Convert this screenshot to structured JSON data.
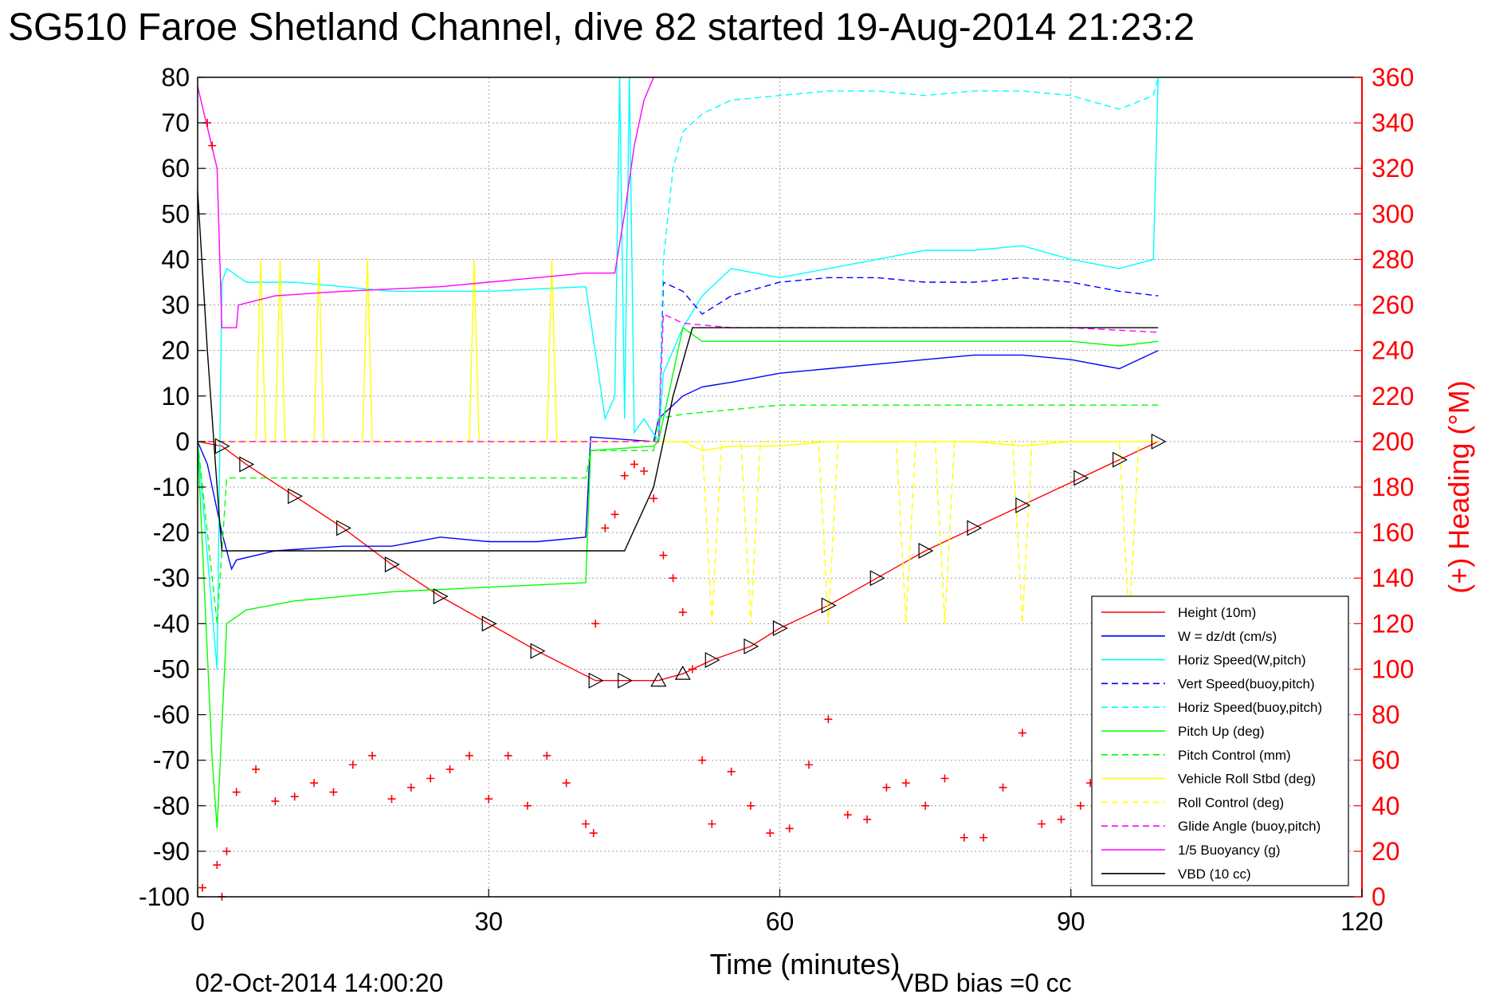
{
  "chart_data": {
    "type": "line",
    "title": "SG510 Faroe Shetland Channel, dive 82 started 19-Aug-2014 21:23:2",
    "xlabel": "Time (minutes)",
    "ylabel_right": "(+) Heading (°M)",
    "footer_date": "02-Oct-2014 14:00:20",
    "footer_bias": "VBD bias =0 cc",
    "xlim": [
      0,
      120
    ],
    "ylim": [
      -100,
      80
    ],
    "ylim_right": [
      0,
      360
    ],
    "xticks": [
      0,
      30,
      60,
      90,
      120
    ],
    "yticks": [
      80,
      70,
      60,
      50,
      40,
      30,
      20,
      10,
      0,
      -10,
      -20,
      -30,
      -40,
      -50,
      -60,
      -70,
      -80,
      -90,
      -100
    ],
    "yticks_right": [
      360,
      340,
      320,
      300,
      280,
      260,
      240,
      220,
      200,
      180,
      160,
      140,
      120,
      100,
      80,
      60,
      40,
      20,
      0
    ],
    "grid": true,
    "legend_position": "bottom-right",
    "series": [
      {
        "name": "Height (10m)",
        "color": "#ff0000",
        "style": "solid",
        "x": [
          0,
          2.5,
          5,
          10,
          15,
          20,
          25,
          30,
          35,
          41,
          44,
          47.5,
          50,
          53,
          57,
          60,
          65,
          70,
          75,
          80,
          85,
          91,
          95,
          99
        ],
        "y": [
          0,
          -1,
          -5,
          -12,
          -19,
          -27,
          -34,
          -40,
          -46,
          -52.5,
          -52.5,
          -52.5,
          -51,
          -48,
          -45,
          -41,
          -36,
          -30,
          -24,
          -19,
          -14,
          -8,
          -4,
          0
        ]
      },
      {
        "name": "W = dz/dt (cm/s)",
        "color": "#0000ff",
        "style": "solid",
        "x": [
          0,
          1,
          2.5,
          3.5,
          4,
          8,
          15,
          20,
          25,
          30,
          35,
          40,
          40.5,
          47,
          47.5,
          50,
          52,
          55,
          60,
          65,
          70,
          75,
          80,
          85,
          90,
          95,
          99
        ],
        "y": [
          0,
          -5,
          -20,
          -28,
          -26,
          -24,
          -23,
          -23,
          -21,
          -22,
          -22,
          -21,
          1,
          0,
          5,
          10,
          12,
          13,
          15,
          16,
          17,
          18,
          19,
          19,
          18,
          16,
          20
        ]
      },
      {
        "name": "Horiz Speed(W,pitch)",
        "color": "#00ffff",
        "style": "solid",
        "x": [
          0,
          2,
          2.5,
          3,
          5,
          10,
          20,
          30,
          40,
          42,
          43,
          43.5,
          44,
          44.5,
          45,
          46,
          47.5,
          48,
          50,
          52,
          55,
          60,
          65,
          70,
          75,
          80,
          85,
          90,
          95,
          98.5,
          99
        ],
        "y": [
          0,
          -50,
          35,
          38,
          35,
          35,
          33,
          33,
          34,
          5,
          10,
          80,
          5,
          80,
          2,
          5,
          0,
          15,
          25,
          32,
          38,
          36,
          38,
          40,
          42,
          42,
          43,
          40,
          38,
          40,
          80
        ]
      },
      {
        "name": "Vert Speed(buoy,pitch)",
        "color": "#0000ff",
        "style": "dashed",
        "x": [
          47.5,
          48,
          50,
          52,
          55,
          60,
          65,
          70,
          75,
          80,
          85,
          90,
          95,
          99
        ],
        "y": [
          0,
          35,
          33,
          28,
          32,
          35,
          36,
          36,
          35,
          35,
          36,
          35,
          33,
          32
        ]
      },
      {
        "name": "Horiz Speed(buoy,pitch)",
        "color": "#00ffff",
        "style": "dashed",
        "x": [
          47.5,
          48,
          49,
          50,
          52,
          55,
          60,
          65,
          70,
          75,
          80,
          85,
          90,
          95,
          98.5,
          99
        ],
        "y": [
          0,
          40,
          60,
          68,
          72,
          75,
          76,
          77,
          77,
          76,
          77,
          77,
          76,
          73,
          76,
          80
        ]
      },
      {
        "name": "Pitch Up (deg)",
        "color": "#00ff00",
        "style": "solid",
        "x": [
          0,
          1.5,
          2,
          3,
          5,
          10,
          20,
          30,
          40,
          40.5,
          47,
          47.5,
          50,
          52,
          55,
          60,
          70,
          80,
          90,
          95,
          99
        ],
        "y": [
          0,
          -70,
          -85,
          -40,
          -37,
          -35,
          -33,
          -32,
          -31,
          -2,
          -1,
          0,
          25,
          22,
          22,
          22,
          22,
          22,
          22,
          21,
          22
        ]
      },
      {
        "name": "Pitch Control (mm)",
        "color": "#00ff00",
        "style": "dashed",
        "x": [
          0,
          2,
          3,
          10,
          20,
          30,
          40,
          40.5,
          47,
          47.5,
          50,
          55,
          60,
          70,
          80,
          90,
          99
        ],
        "y": [
          0,
          -40,
          -8,
          -8,
          -8,
          -8,
          -8,
          -2,
          -2,
          5,
          6,
          7,
          8,
          8,
          8,
          8,
          8
        ]
      },
      {
        "name": "Vehicle Roll Stbd (deg)",
        "color": "#ffff00",
        "style": "solid",
        "x": [
          0,
          2,
          4,
          6,
          6.5,
          7,
          8,
          8.5,
          9,
          12,
          12.5,
          13,
          17,
          17.5,
          18,
          28,
          28.5,
          29,
          36,
          36.5,
          37,
          40,
          47,
          50,
          52,
          55,
          60,
          65,
          70,
          75,
          80,
          85,
          90,
          95,
          99
        ],
        "y": [
          0,
          0,
          0,
          0,
          40,
          0,
          0,
          40,
          0,
          0,
          40,
          0,
          0,
          40,
          0,
          0,
          40,
          0,
          0,
          40,
          0,
          0,
          0,
          0,
          -2,
          -1,
          -1,
          0,
          0,
          0,
          0,
          -1,
          0,
          0,
          0
        ]
      },
      {
        "name": "Roll Control (deg)",
        "color": "#ffff00",
        "style": "dashed",
        "x": [
          0,
          40,
          47,
          52,
          53,
          54,
          56,
          57,
          58,
          64,
          65,
          66,
          72,
          73,
          74,
          76,
          77,
          78,
          84,
          85,
          86,
          95,
          96,
          97,
          99
        ],
        "y": [
          0,
          0,
          0,
          0,
          -40,
          0,
          0,
          -40,
          0,
          0,
          -40,
          0,
          0,
          -40,
          0,
          0,
          -40,
          0,
          0,
          -40,
          0,
          0,
          -40,
          0,
          0
        ]
      },
      {
        "name": "Glide Angle (buoy,pitch)",
        "color": "#ff00ff",
        "style": "dashed",
        "x": [
          0,
          47,
          47.5,
          48,
          50,
          55,
          60,
          70,
          80,
          90,
          99
        ],
        "y": [
          0,
          0,
          0,
          28,
          26,
          25,
          25,
          25,
          25,
          25,
          24
        ]
      },
      {
        "name": "1/5 Buoyancy (g)",
        "color": "#ff00ff",
        "style": "solid",
        "x": [
          0,
          2,
          2.5,
          4,
          4.2,
          8,
          15,
          25,
          35,
          40,
          43,
          44,
          45,
          46,
          47
        ],
        "y": [
          78,
          60,
          25,
          25,
          30,
          32,
          33,
          34,
          36,
          37,
          37,
          50,
          65,
          75,
          80
        ]
      },
      {
        "name": "VBD (10 cc)",
        "color": "#000000",
        "style": "solid",
        "x": [
          0,
          1,
          2,
          2.5,
          3,
          43,
          44,
          47,
          48,
          49,
          51,
          99
        ],
        "y": [
          55,
          20,
          -10,
          -24,
          -24,
          -24,
          -24,
          -10,
          0,
          10,
          25,
          25
        ]
      },
      {
        "name": "Heading",
        "color": "#ff0000",
        "style": "markers",
        "axis": "right",
        "x": [
          0.5,
          1,
          1.5,
          2,
          2.5,
          3,
          4,
          6,
          8,
          10,
          12,
          14,
          16,
          18,
          20,
          22,
          24,
          26,
          28,
          30,
          32,
          34,
          36,
          38,
          40,
          40.8,
          41,
          42,
          43,
          44,
          45,
          46,
          47,
          48,
          49,
          50,
          51,
          52,
          53,
          55,
          57,
          59,
          61,
          63,
          65,
          67,
          69,
          71,
          73,
          75,
          77,
          79,
          81,
          83,
          85,
          87,
          89,
          91,
          92
        ],
        "y": [
          4,
          340,
          330,
          14,
          0,
          20,
          46,
          56,
          42,
          44,
          50,
          46,
          58,
          62,
          43,
          48,
          52,
          56,
          62,
          43,
          62,
          40,
          62,
          50,
          32,
          28,
          120,
          162,
          168,
          185,
          190,
          187,
          175,
          150,
          140,
          125,
          100,
          60,
          32,
          55,
          40,
          28,
          30,
          58,
          78,
          36,
          34,
          48,
          50,
          40,
          52,
          26,
          26,
          48,
          72,
          32,
          34,
          40,
          50
        ]
      }
    ]
  }
}
